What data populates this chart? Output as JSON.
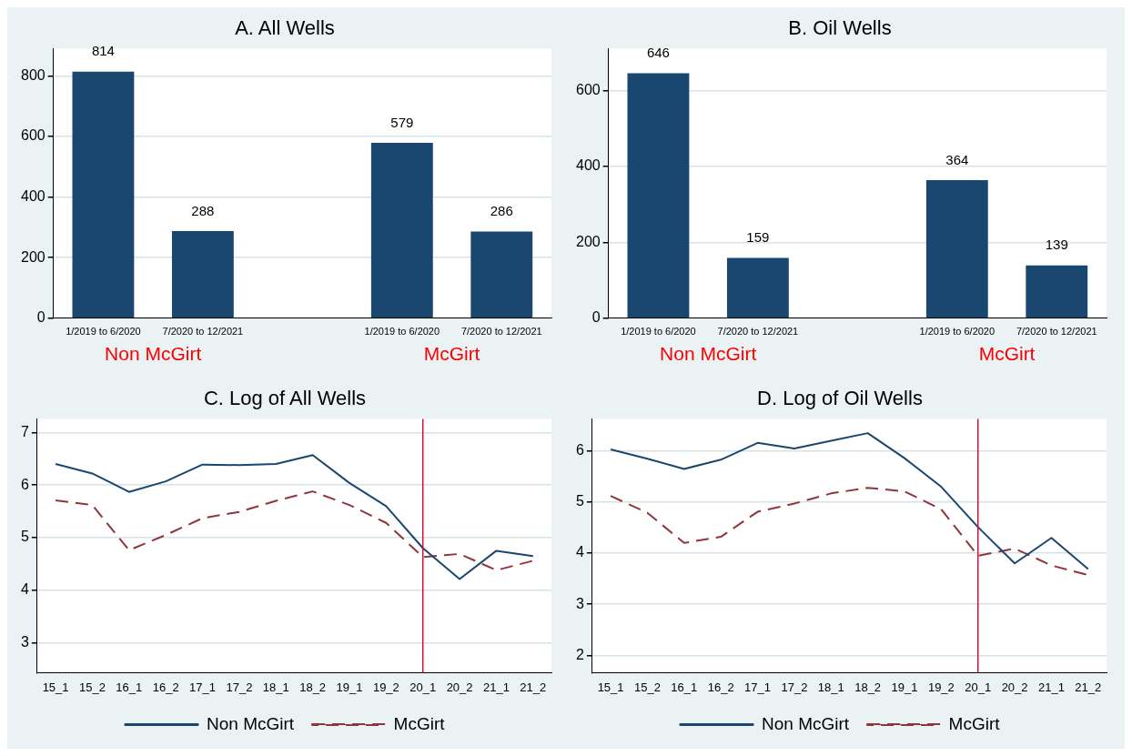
{
  "chart_data": [
    {
      "type": "bar",
      "title": "A. All Wells",
      "categories": [
        "1/2019 to 6/2020",
        "7/2020 to 12/2021",
        null,
        "1/2019 to 6/2020",
        "7/2020 to 12/2021"
      ],
      "values": [
        814,
        288,
        null,
        579,
        286
      ],
      "color": "#1a476f",
      "ylim": [
        0,
        890
      ],
      "yticks": [
        0,
        200,
        400,
        600,
        800
      ],
      "grid": "y",
      "data_labels": true,
      "legend": false,
      "annotations": [
        "Non McGirt",
        "McGirt"
      ]
    },
    {
      "type": "bar",
      "title": "B. Oil Wells",
      "categories": [
        "1/2019 to 6/2020",
        "7/2020 to 12/2021",
        null,
        "1/2019 to 6/2020",
        "7/2020 to 12/2021"
      ],
      "values": [
        646,
        159,
        null,
        364,
        139
      ],
      "color": "#1a476f",
      "ylim": [
        0,
        711
      ],
      "yticks": [
        0,
        200,
        400,
        600
      ],
      "grid": "y",
      "data_labels": true,
      "legend": false,
      "annotations": [
        "Non McGirt",
        "McGirt"
      ]
    },
    {
      "type": "line",
      "title": "C. Log of All Wells",
      "categories": [
        "15_1",
        "15_2",
        "16_1",
        "16_2",
        "17_1",
        "17_2",
        "18_1",
        "18_2",
        "19_1",
        "19_2",
        "20_1",
        "20_2",
        "21_1",
        "21_2"
      ],
      "series": [
        {
          "name": "Non McGirt",
          "color": "#1a476f",
          "line_style": "solid",
          "values": [
            6.4,
            6.22,
            5.87,
            6.07,
            6.39,
            6.38,
            6.4,
            6.57,
            6.04,
            5.6,
            4.8,
            4.21,
            4.75,
            4.65
          ]
        },
        {
          "name": "McGirt",
          "color": "#90353b",
          "line_style": "dashed",
          "values": [
            5.71,
            5.62,
            4.76,
            5.05,
            5.37,
            5.49,
            5.7,
            5.88,
            5.62,
            5.28,
            4.63,
            4.69,
            4.38,
            4.56
          ]
        }
      ],
      "ylim": [
        2.43,
        7.26
      ],
      "yticks": [
        3,
        4,
        5,
        6,
        7
      ],
      "grid": "y",
      "legend": "bottom",
      "marker": "none",
      "ref_lines": [
        {
          "axis": "x",
          "value": "20_1",
          "color": "#d00f3c"
        }
      ]
    },
    {
      "type": "line",
      "title": "D. Log of Oil Wells",
      "categories": [
        "15_1",
        "15_2",
        "16_1",
        "16_2",
        "17_1",
        "17_2",
        "18_1",
        "18_2",
        "19_1",
        "19_2",
        "20_1",
        "20_2",
        "21_1",
        "21_2"
      ],
      "series": [
        {
          "name": "Non McGirt",
          "color": "#1a476f",
          "line_style": "solid",
          "values": [
            6.03,
            5.85,
            5.65,
            5.83,
            6.16,
            6.05,
            6.2,
            6.35,
            5.86,
            5.3,
            4.51,
            3.8,
            4.3,
            3.69
          ]
        },
        {
          "name": "McGirt",
          "color": "#90353b",
          "line_style": "dashed",
          "values": [
            5.12,
            4.79,
            4.2,
            4.32,
            4.81,
            4.97,
            5.17,
            5.28,
            5.21,
            4.86,
            3.95,
            4.09,
            3.76,
            3.57
          ]
        }
      ],
      "ylim": [
        1.66,
        6.63
      ],
      "yticks": [
        2,
        3,
        4,
        5,
        6
      ],
      "grid": "y",
      "legend": "bottom",
      "marker": "none",
      "ref_lines": [
        {
          "axis": "x",
          "value": "20_1",
          "color": "#d00f3c"
        }
      ]
    }
  ]
}
